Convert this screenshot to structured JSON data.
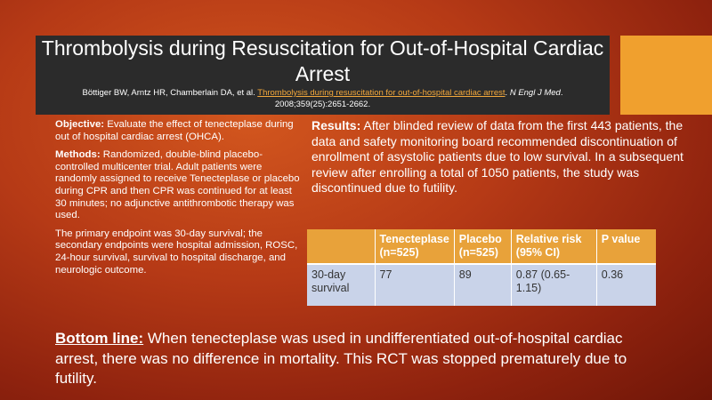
{
  "header": {
    "title": "Thrombolysis during Resuscitation for Out-of-Hospital Cardiac Arrest",
    "citation_authors": "Böttiger BW, Arntz HR, Chamberlain DA, et al.",
    "citation_link_text": "Thrombolysis during resuscitation for out-of-hospital cardiac arrest",
    "citation_journal": "N Engl J Med",
    "citation_details": "2008;359(25):2651-2662."
  },
  "objective": {
    "label": "Objective:",
    "text": "Evaluate the effect of tenecteplase during out of hospital cardiac arrest (OHCA)."
  },
  "methods": {
    "label": "Methods:",
    "text": "Randomized, double-blind placebo-controlled multicenter trial. Adult patients were randomly assigned to receive Tenecteplase or placebo during CPR and then CPR was continued for at least 30 minutes; no adjunctive antithrombotic therapy was used."
  },
  "endpoints": {
    "text": "The primary endpoint was 30-day survival; the secondary endpoints were hospital admission, ROSC, 24-hour survival, survival to hospital discharge, and neurologic outcome."
  },
  "results": {
    "label": "Results:",
    "text": "After blinded review of data from the first 443 patients, the data and safety monitoring board recommended discontinuation of enrollment of asystolic patients due to low survival. In a subsequent review after enrolling a total of 1050 patients, the study was discontinued due to futility."
  },
  "table": {
    "headers": [
      "",
      "Tenecteplase (n=525)",
      "Placebo (n=525)",
      "Relative risk (95% CI)",
      "P value"
    ],
    "rows": [
      [
        "30-day survival",
        "77",
        "89",
        "0.87 (0.65-1.15)",
        "0.36"
      ]
    ]
  },
  "bottom_line": {
    "label": "Bottom line:",
    "text": "When tenecteplase was used in undifferentiated out-of-hospital cardiac arrest, there was no difference in mortality. This RCT was stopped prematurely due to futility."
  },
  "colors": {
    "background": "#b63a16",
    "title_bar": "#2b2b2b",
    "accent": "#f0a02e",
    "table_header": "#e8a23a",
    "table_body": "#c9d3e9",
    "link": "#f3a83b"
  }
}
